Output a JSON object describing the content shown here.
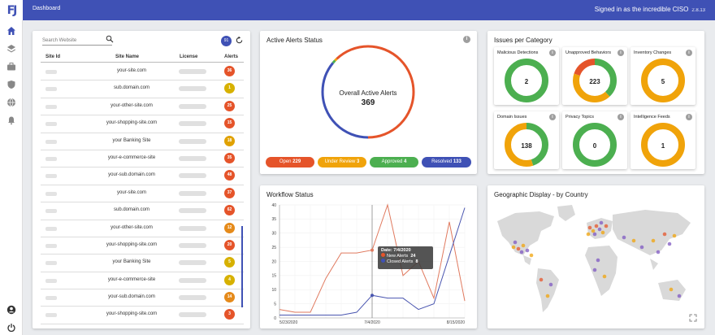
{
  "header": {
    "logo_text": "FJ",
    "title": "Dashboard",
    "signed_in": "Signed in as the incredible CISO",
    "version": "2.8.13"
  },
  "nav": {
    "items": [
      "home-icon",
      "layers-icon",
      "briefcase-icon",
      "shield-icon",
      "globe-icon",
      "bell-icon"
    ],
    "bottom": [
      "account-icon",
      "power-icon"
    ]
  },
  "sites": {
    "search_placeholder": "Search Website",
    "count": "91",
    "columns": {
      "site_id": "Site Id",
      "site_name": "Site Name",
      "license": "License",
      "alerts": "Alerts"
    },
    "rows": [
      {
        "name": "your-site.com",
        "alerts": "36",
        "color": "#e5542a"
      },
      {
        "name": "sub.domain.com",
        "alerts": "1",
        "color": "#d7b100"
      },
      {
        "name": "your-other-site.com",
        "alerts": "25",
        "color": "#e5542a"
      },
      {
        "name": "your-shopping-site.com",
        "alerts": "15",
        "color": "#e5542a"
      },
      {
        "name": "your Banking Site",
        "alerts": "18",
        "color": "#e0a100"
      },
      {
        "name": "your-e-commerce-site",
        "alerts": "35",
        "color": "#e5542a"
      },
      {
        "name": "your-sub.domain.com",
        "alerts": "48",
        "color": "#e5542a"
      },
      {
        "name": "your-site.com",
        "alerts": "37",
        "color": "#e5542a"
      },
      {
        "name": "sub.domain.com",
        "alerts": "62",
        "color": "#e5542a"
      },
      {
        "name": "your-other-site.com",
        "alerts": "12",
        "color": "#e58a1a"
      },
      {
        "name": "your-shopping-site.com",
        "alerts": "20",
        "color": "#e5542a"
      },
      {
        "name": "your Banking Site",
        "alerts": "5",
        "color": "#d7b100"
      },
      {
        "name": "your-e-commerce-site",
        "alerts": "4",
        "color": "#d7b100"
      },
      {
        "name": "your-sub.domain.com",
        "alerts": "14",
        "color": "#e58a1a"
      },
      {
        "name": "your-shopping-site.com",
        "alerts": "3",
        "color": "#e5542a"
      }
    ]
  },
  "active_alerts": {
    "title": "Active Alerts Status",
    "center_label": "Overall Active Alerts",
    "center_value": "369",
    "statuses": [
      {
        "label": "Open",
        "value": "229",
        "color": "#e5542a"
      },
      {
        "label": "Under Review",
        "value": "3",
        "color": "#f0a30a"
      },
      {
        "label": "Approved",
        "value": "4",
        "color": "#4caf50"
      },
      {
        "label": "Resolved",
        "value": "133",
        "color": "#3f51b5"
      }
    ]
  },
  "categories": {
    "title": "Issues per Category",
    "tiles": [
      {
        "label": "Malicious Detections",
        "value": "2",
        "segments": [
          {
            "frac": 1.0,
            "color": "#4caf50"
          }
        ]
      },
      {
        "label": "Unapproved Behaviors",
        "value": "223",
        "segments": [
          {
            "frac": 0.38,
            "color": "#4caf50"
          },
          {
            "frac": 0.42,
            "color": "#f0a30a"
          },
          {
            "frac": 0.2,
            "color": "#e5542a"
          }
        ]
      },
      {
        "label": "Inventory Changes",
        "value": "5",
        "segments": [
          {
            "frac": 1.0,
            "color": "#f0a30a"
          }
        ]
      },
      {
        "label": "Domain Issues",
        "value": "138",
        "segments": [
          {
            "frac": 0.45,
            "color": "#4caf50"
          },
          {
            "frac": 0.55,
            "color": "#f0a30a"
          }
        ]
      },
      {
        "label": "Privacy Topics",
        "value": "0",
        "segments": [
          {
            "frac": 1.0,
            "color": "#4caf50"
          }
        ]
      },
      {
        "label": "Intelligence Feeds",
        "value": "1",
        "segments": [
          {
            "frac": 1.0,
            "color": "#f0a30a"
          }
        ]
      }
    ]
  },
  "workflow": {
    "title": "Workflow Status",
    "tooltip": {
      "date": "Date: 7/4/2020",
      "new_label": "New Alerts",
      "new_value": "24",
      "closed_label": "Closed Alerts",
      "closed_value": "8"
    }
  },
  "chart_data": {
    "type": "line",
    "x": [
      "5/23/2020",
      "5/30/2020",
      "6/6/2020",
      "6/13/2020",
      "6/20/2020",
      "6/27/2020",
      "7/4/2020",
      "7/11/2020",
      "7/18/2020",
      "7/25/2020",
      "8/1/2020",
      "8/8/2020",
      "8/15/2020"
    ],
    "x_tick_labels": [
      "5/23/2020",
      "7/4/2020",
      "8/15/2020"
    ],
    "series": [
      {
        "name": "New Alerts",
        "color": "#e07a5f",
        "values": [
          3,
          2,
          2,
          14,
          23,
          23,
          24,
          40,
          15,
          20,
          7,
          34,
          6
        ]
      },
      {
        "name": "Closed Alerts",
        "color": "#4a56b0",
        "values": [
          1,
          1,
          1,
          1,
          1,
          2,
          8,
          7,
          7,
          3,
          5,
          22,
          39
        ]
      }
    ],
    "ylim": [
      0,
      40
    ],
    "yticks": [
      0,
      5,
      10,
      15,
      20,
      25,
      30,
      35,
      40
    ],
    "grid": true
  },
  "geo": {
    "title": "Geographic Display - by Country"
  }
}
